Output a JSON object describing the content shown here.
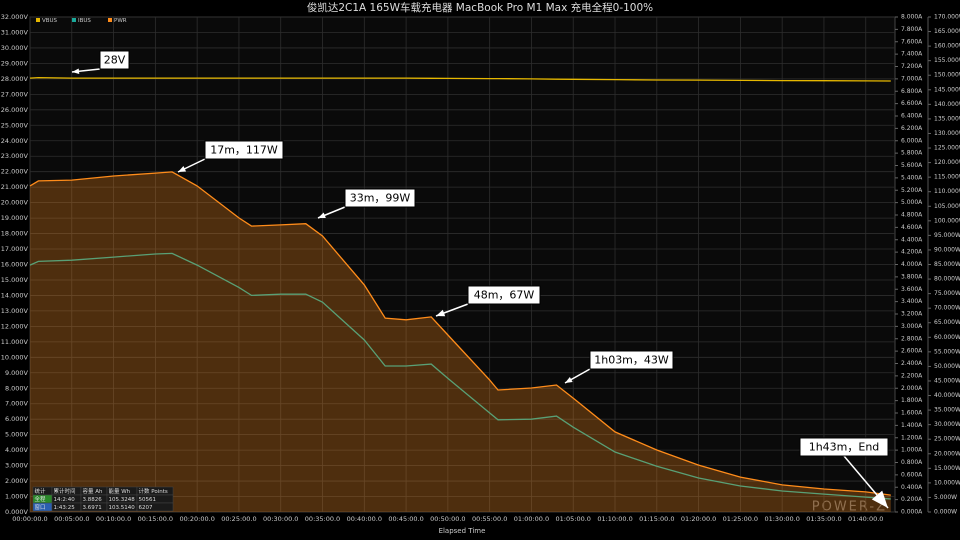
{
  "chart_data": {
    "type": "line",
    "title": "俊凯达2C1A 165W车载充电器 MacBook Pro M1 Max 充电全程0-100%",
    "x_label": "Elapsed Time",
    "watermark": "POWER-Z",
    "grid": true,
    "xlim": [
      0,
      103.5
    ],
    "xticks": [
      {
        "value": 0,
        "label": "00:00:00.0"
      },
      {
        "value": 5,
        "label": "00:05:00.0"
      },
      {
        "value": 10,
        "label": "00:10:00.0"
      },
      {
        "value": 15,
        "label": "00:15:00.0"
      },
      {
        "value": 20,
        "label": "00:20:00.0"
      },
      {
        "value": 25,
        "label": "00:25:00.0"
      },
      {
        "value": 30,
        "label": "00:30:00.0"
      },
      {
        "value": 35,
        "label": "00:35:00.0"
      },
      {
        "value": 40,
        "label": "00:40:00.0"
      },
      {
        "value": 45,
        "label": "00:45:00.0"
      },
      {
        "value": 50,
        "label": "00:50:00.0"
      },
      {
        "value": 55,
        "label": "00:55:00.0"
      },
      {
        "value": 60,
        "label": "01:00:00.0"
      },
      {
        "value": 65,
        "label": "01:05:00.0"
      },
      {
        "value": 70,
        "label": "01:10:00.0"
      },
      {
        "value": 75,
        "label": "01:15:00.0"
      },
      {
        "value": 80,
        "label": "01:20:00.0"
      },
      {
        "value": 85,
        "label": "01:25:00.0"
      },
      {
        "value": 90,
        "label": "01:30:00.0"
      },
      {
        "value": 95,
        "label": "01:35:00.0"
      },
      {
        "value": 100,
        "label": "01:40:00.0"
      }
    ],
    "ylim": [
      0,
      32
    ],
    "yticks": [
      {
        "value": 0,
        "label": "0.000V"
      },
      {
        "value": 1,
        "label": "1.000V"
      },
      {
        "value": 2,
        "label": "2.000V"
      },
      {
        "value": 3,
        "label": "3.000V"
      },
      {
        "value": 4,
        "label": "4.000V"
      },
      {
        "value": 5,
        "label": "5.000V"
      },
      {
        "value": 6,
        "label": "6.000V"
      },
      {
        "value": 7,
        "label": "7.000V"
      },
      {
        "value": 8,
        "label": "8.000V"
      },
      {
        "value": 9,
        "label": "9.000V"
      },
      {
        "value": 10,
        "label": "10.000V"
      },
      {
        "value": 11,
        "label": "11.000V"
      },
      {
        "value": 12,
        "label": "12.000V"
      },
      {
        "value": 13,
        "label": "13.000V"
      },
      {
        "value": 14,
        "label": "14.000V"
      },
      {
        "value": 15,
        "label": "15.000V"
      },
      {
        "value": 16,
        "label": "16.000V"
      },
      {
        "value": 17,
        "label": "17.000V"
      },
      {
        "value": 18,
        "label": "18.000V"
      },
      {
        "value": 19,
        "label": "19.000V"
      },
      {
        "value": 20,
        "label": "20.000V"
      },
      {
        "value": 21,
        "label": "21.000V"
      },
      {
        "value": 22,
        "label": "22.000V"
      },
      {
        "value": 23,
        "label": "23.000V"
      },
      {
        "value": 24,
        "label": "24.000V"
      },
      {
        "value": 25,
        "label": "25.000V"
      },
      {
        "value": 26,
        "label": "26.000V"
      },
      {
        "value": 27,
        "label": "27.000V"
      },
      {
        "value": 28,
        "label": "28.000V"
      },
      {
        "value": 29,
        "label": "29.000V"
      },
      {
        "value": 30,
        "label": "30.000V"
      },
      {
        "value": 31,
        "label": "31.000V"
      },
      {
        "value": 32,
        "label": "32.000V"
      }
    ],
    "y2lim": [
      0,
      8
    ],
    "y2ticks": [
      {
        "value": 0,
        "label": "0.000A"
      },
      {
        "value": 0.2,
        "label": "0.200A"
      },
      {
        "value": 0.4,
        "label": "0.400A"
      },
      {
        "value": 0.6,
        "label": "0.600A"
      },
      {
        "value": 0.8,
        "label": "0.800A"
      },
      {
        "value": 1,
        "label": "1.000A"
      },
      {
        "value": 1.2,
        "label": "1.200A"
      },
      {
        "value": 1.4,
        "label": "1.400A"
      },
      {
        "value": 1.6,
        "label": "1.600A"
      },
      {
        "value": 1.8,
        "label": "1.800A"
      },
      {
        "value": 2,
        "label": "2.000A"
      },
      {
        "value": 2.2,
        "label": "2.200A"
      },
      {
        "value": 2.4,
        "label": "2.400A"
      },
      {
        "value": 2.6,
        "label": "2.600A"
      },
      {
        "value": 2.8,
        "label": "2.800A"
      },
      {
        "value": 3,
        "label": "3.000A"
      },
      {
        "value": 3.2,
        "label": "3.200A"
      },
      {
        "value": 3.4,
        "label": "3.400A"
      },
      {
        "value": 3.6,
        "label": "3.600A"
      },
      {
        "value": 3.8,
        "label": "3.800A"
      },
      {
        "value": 4,
        "label": "4.000A"
      },
      {
        "value": 4.2,
        "label": "4.200A"
      },
      {
        "value": 4.4,
        "label": "4.400A"
      },
      {
        "value": 4.6,
        "label": "4.600A"
      },
      {
        "value": 4.8,
        "label": "4.800A"
      },
      {
        "value": 5,
        "label": "5.000A"
      },
      {
        "value": 5.2,
        "label": "5.200A"
      },
      {
        "value": 5.4,
        "label": "5.400A"
      },
      {
        "value": 5.6,
        "label": "5.600A"
      },
      {
        "value": 5.8,
        "label": "5.800A"
      },
      {
        "value": 6,
        "label": "6.000A"
      },
      {
        "value": 6.2,
        "label": "6.200A"
      },
      {
        "value": 6.4,
        "label": "6.400A"
      },
      {
        "value": 6.6,
        "label": "6.600A"
      },
      {
        "value": 6.8,
        "label": "6.800A"
      },
      {
        "value": 7,
        "label": "7.000A"
      },
      {
        "value": 7.2,
        "label": "7.200A"
      },
      {
        "value": 7.4,
        "label": "7.400A"
      },
      {
        "value": 7.6,
        "label": "7.600A"
      },
      {
        "value": 7.8,
        "label": "7.800A"
      },
      {
        "value": 8,
        "label": "8.000A"
      }
    ],
    "y3lim": [
      0,
      170
    ],
    "y3ticks": [
      {
        "value": 0,
        "label": "0.000W"
      },
      {
        "value": 5,
        "label": "5.000W"
      },
      {
        "value": 10,
        "label": "10.000W"
      },
      {
        "value": 15,
        "label": "15.000W"
      },
      {
        "value": 20,
        "label": "20.000W"
      },
      {
        "value": 25,
        "label": "25.000W"
      },
      {
        "value": 30,
        "label": "30.000W"
      },
      {
        "value": 35,
        "label": "35.000W"
      },
      {
        "value": 40,
        "label": "40.000W"
      },
      {
        "value": 45,
        "label": "45.000W"
      },
      {
        "value": 50,
        "label": "50.000W"
      },
      {
        "value": 55,
        "label": "55.000W"
      },
      {
        "value": 60,
        "label": "60.000W"
      },
      {
        "value": 65,
        "label": "65.000W"
      },
      {
        "value": 70,
        "label": "70.000W"
      },
      {
        "value": 75,
        "label": "75.000W"
      },
      {
        "value": 80,
        "label": "80.000W"
      },
      {
        "value": 85,
        "label": "85.000W"
      },
      {
        "value": 90,
        "label": "90.000W"
      },
      {
        "value": 95,
        "label": "95.000W"
      },
      {
        "value": 100,
        "label": "100.000W"
      },
      {
        "value": 105,
        "label": "105.000W"
      },
      {
        "value": 110,
        "label": "110.000W"
      },
      {
        "value": 115,
        "label": "115.000W"
      },
      {
        "value": 120,
        "label": "120.000W"
      },
      {
        "value": 125,
        "label": "125.000W"
      },
      {
        "value": 130,
        "label": "130.000W"
      },
      {
        "value": 135,
        "label": "135.000W"
      },
      {
        "value": 140,
        "label": "140.000W"
      },
      {
        "value": 145,
        "label": "145.000W"
      },
      {
        "value": 150,
        "label": "150.000W"
      },
      {
        "value": 155,
        "label": "155.000W"
      },
      {
        "value": 160,
        "label": "160.000W"
      },
      {
        "value": 165,
        "label": "165.000W"
      },
      {
        "value": 170,
        "label": "170.000W"
      }
    ],
    "x": [
      0,
      1,
      5,
      10,
      15,
      17,
      20,
      25,
      26.5,
      30,
      33,
      35,
      40,
      42.5,
      45,
      48,
      50,
      55,
      56,
      60,
      63,
      65,
      70,
      75,
      80,
      85,
      90,
      95,
      100,
      103
    ],
    "series": [
      {
        "name": "VBUS",
        "color": "#e6b800",
        "axis": "y",
        "values": [
          28.05,
          28.08,
          28.05,
          28.05,
          28.05,
          28.05,
          28.05,
          28.05,
          28.05,
          28.05,
          28.05,
          28.05,
          28.05,
          28.05,
          28.05,
          28.04,
          28.03,
          28.02,
          28.02,
          28.0,
          27.98,
          27.97,
          27.95,
          27.93,
          27.92,
          27.9,
          27.89,
          27.88,
          27.87,
          27.86
        ]
      },
      {
        "name": "IBUS",
        "color": "#1aa89a",
        "axis": "y2",
        "values": [
          3.99,
          4.05,
          4.07,
          4.12,
          4.17,
          4.18,
          3.99,
          3.63,
          3.5,
          3.52,
          3.52,
          3.39,
          2.78,
          2.36,
          2.36,
          2.39,
          2.16,
          1.6,
          1.49,
          1.5,
          1.55,
          1.37,
          0.97,
          0.74,
          0.55,
          0.42,
          0.34,
          0.29,
          0.24,
          0.21
        ]
      },
      {
        "name": "PWR",
        "color": "#ff8c1a",
        "axis": "y3",
        "area": true,
        "values": [
          112,
          113.7,
          114,
          115.4,
          116.4,
          116.8,
          112,
          101,
          98.2,
          98.6,
          99,
          94.8,
          78,
          66.6,
          66,
          67,
          60.8,
          45.3,
          41.9,
          42.6,
          43.6,
          39.1,
          27.5,
          21.3,
          16.1,
          12,
          9.3,
          7.9,
          6.9,
          5.8
        ]
      }
    ],
    "annotations": [
      "28V",
      "17m，117W",
      "33m，99W",
      "48m，67W",
      "1h03m，43W",
      "1h43m，End"
    ],
    "stats_table": {
      "header": [
        "统计",
        "累计时间",
        "容量 Ah",
        "能量 Wh",
        "计数 Points"
      ],
      "rows": [
        [
          "全程",
          "14:2:40",
          "3.8826",
          "105.3248",
          "50561"
        ],
        [
          "窗口",
          "1:43:25",
          "3.6971",
          "103.5140",
          "6207"
        ]
      ]
    }
  }
}
